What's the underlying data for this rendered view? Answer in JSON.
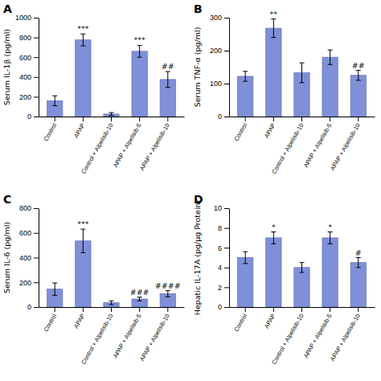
{
  "chart_data": [
    {
      "type": "bar",
      "title": "A",
      "ylabel": "Serum IL-1β (pg/ml)",
      "categories": [
        "Control",
        "APAP",
        "Control + Alpelisib-10",
        "APAP + Alpelisib-5",
        "APAP + Alpelisib-10"
      ],
      "values": [
        160,
        775,
        25,
        660,
        375
      ],
      "errors": [
        50,
        60,
        15,
        60,
        80
      ],
      "significance": [
        null,
        "***",
        null,
        "***",
        "##"
      ],
      "color": "#8090d8",
      "ylim": [
        0,
        1000
      ],
      "yticks": [
        0,
        200,
        400,
        600,
        800,
        1000
      ]
    },
    {
      "type": "bar",
      "title": "B",
      "ylabel": "Serum TNF-α (pg/ml)",
      "categories": [
        "Control",
        "APAP",
        "Control + Alpelisib-10",
        "APAP + Alpelisib-5",
        "APAP + Alpelisib-10"
      ],
      "values": [
        122,
        268,
        133,
        180,
        125
      ],
      "errors": [
        15,
        28,
        30,
        22,
        15
      ],
      "significance": [
        null,
        "**",
        null,
        null,
        "##"
      ],
      "color": "#8090d8",
      "ylim": [
        0,
        300
      ],
      "yticks": [
        0,
        100,
        200,
        300
      ]
    },
    {
      "type": "bar",
      "title": "C",
      "ylabel": "Serum IL-6 (pg/ml)",
      "categories": [
        "Control",
        "APAP",
        "Control + Alpelisib-10",
        "APAP + Alpelisib-5",
        "APAP + Alpelisib-10"
      ],
      "values": [
        145,
        535,
        35,
        65,
        108
      ],
      "errors": [
        50,
        95,
        15,
        15,
        25
      ],
      "significance": [
        null,
        "***",
        null,
        "###",
        "####"
      ],
      "color": "#8090d8",
      "ylim": [
        0,
        800
      ],
      "yticks": [
        0,
        200,
        400,
        600,
        800
      ]
    },
    {
      "type": "bar",
      "title": "D",
      "ylabel": "Hepatic IL-17A (pg/μg Protein)",
      "categories": [
        "Control",
        "APAP",
        "Control + Alpelisib-10",
        "APAP + Alpelisib-5",
        "APAP + Alpelisib-10"
      ],
      "values": [
        5.0,
        7.0,
        4.0,
        7.0,
        4.5
      ],
      "errors": [
        0.6,
        0.6,
        0.5,
        0.6,
        0.5
      ],
      "significance": [
        null,
        "*",
        null,
        "*",
        "#"
      ],
      "color": "#8090d8",
      "ylim": [
        0,
        10
      ],
      "yticks": [
        0,
        2,
        4,
        6,
        8,
        10
      ]
    }
  ]
}
